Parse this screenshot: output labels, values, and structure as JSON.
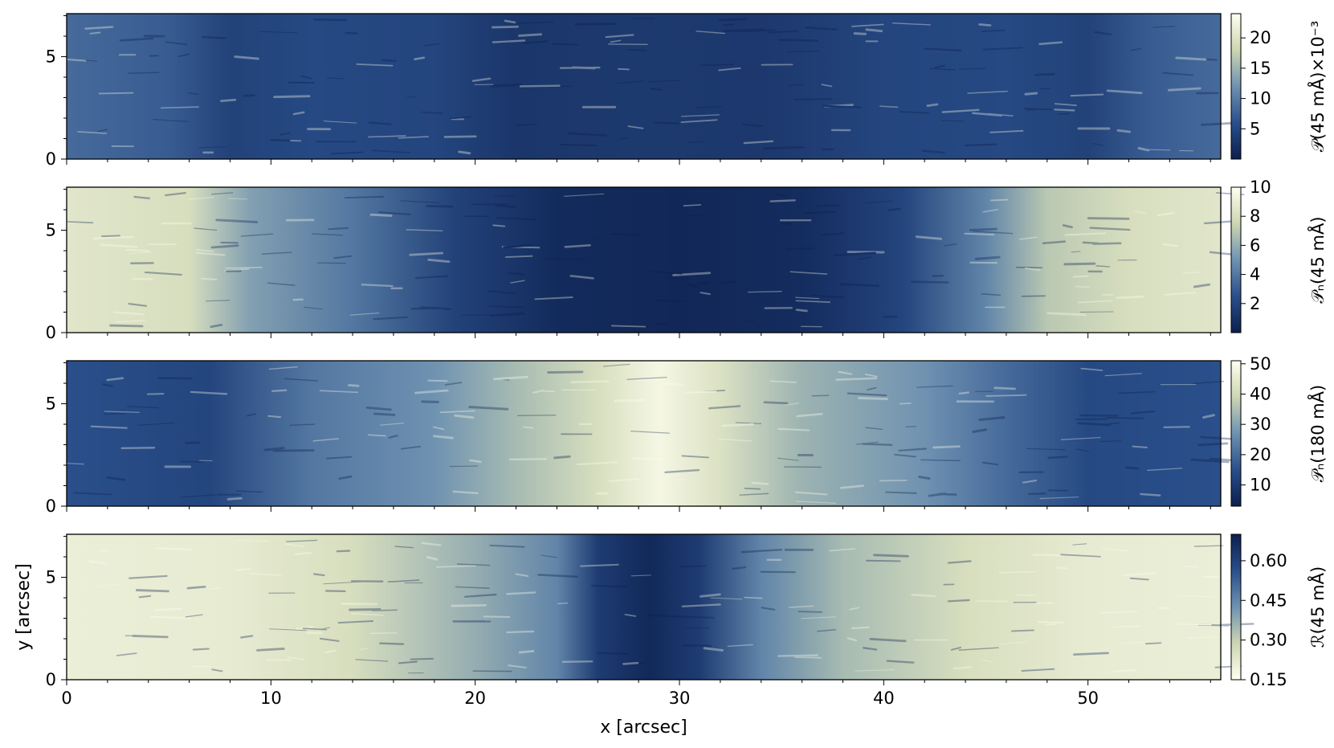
{
  "chart_data": {
    "type": "heatmap",
    "shared": {
      "xlabel": "x [arcsec]",
      "ylabel": "y [arcsec]",
      "xlim": [
        0,
        56.5
      ],
      "ylim": [
        0,
        7.1
      ],
      "x_ticks": [
        0,
        10,
        20,
        30,
        40,
        50
      ],
      "x_tick_labels": [
        "0",
        "10",
        "20",
        "30",
        "40",
        "50"
      ],
      "y_ticks": [
        0,
        5
      ],
      "y_tick_labels": [
        "0",
        "5"
      ]
    },
    "panels": [
      {
        "colorbar_label": "𝒫(45 mÅ)×10⁻³",
        "colormap": [
          "#0c1f4d",
          "#2a4f8a",
          "#6f92b1",
          "#cdd6b2",
          "#fffff0"
        ],
        "clim": [
          0,
          24
        ],
        "colorbar_ticks": [
          5,
          10,
          15,
          20
        ],
        "colorbar_tick_labels": [
          "5",
          "10",
          "15",
          "20"
        ],
        "pattern": "bright granular edges at both ends; dark centre with faint bright filaments",
        "profile": [
          [
            0,
            0.35
          ],
          [
            5,
            0.3
          ],
          [
            8,
            0.18
          ],
          [
            12,
            0.22
          ],
          [
            18,
            0.2
          ],
          [
            22,
            0.12
          ],
          [
            28,
            0.14
          ],
          [
            34,
            0.13
          ],
          [
            40,
            0.2
          ],
          [
            46,
            0.22
          ],
          [
            50,
            0.18
          ],
          [
            53,
            0.3
          ],
          [
            56.5,
            0.35
          ]
        ]
      },
      {
        "colorbar_label": "𝒫ₙ(45 mÅ)",
        "colormap": [
          "#0c1f4d",
          "#2a4f8a",
          "#6f92b1",
          "#cdd6b2",
          "#fffff0"
        ],
        "clim": [
          0,
          10
        ],
        "colorbar_ticks": [
          2,
          4,
          6,
          8,
          10
        ],
        "colorbar_tick_labels": [
          "2",
          "4",
          "6",
          "8",
          "10"
        ],
        "pattern": "high values in outer quiet-Sun regions, filamentary penumbra, very low in umbra",
        "profile": [
          [
            0,
            0.85
          ],
          [
            6,
            0.8
          ],
          [
            9,
            0.55
          ],
          [
            14,
            0.4
          ],
          [
            19,
            0.18
          ],
          [
            24,
            0.06
          ],
          [
            30,
            0.04
          ],
          [
            36,
            0.07
          ],
          [
            41,
            0.2
          ],
          [
            45,
            0.45
          ],
          [
            48,
            0.7
          ],
          [
            52,
            0.8
          ],
          [
            56.5,
            0.85
          ]
        ]
      },
      {
        "colorbar_label": "𝒫ₙ(180 mÅ)",
        "colormap": [
          "#0c1f4d",
          "#2a4f8a",
          "#6f92b1",
          "#cdd6b2",
          "#fffff0"
        ],
        "clim": [
          3,
          51
        ],
        "colorbar_ticks": [
          10,
          20,
          30,
          40,
          50
        ],
        "colorbar_tick_labels": [
          "10",
          "20",
          "30",
          "40",
          "50"
        ],
        "pattern": "bright umbral core near x≈29, moderate penumbra, dark granulation at ends",
        "profile": [
          [
            0,
            0.25
          ],
          [
            7,
            0.2
          ],
          [
            12,
            0.4
          ],
          [
            18,
            0.5
          ],
          [
            22,
            0.65
          ],
          [
            26,
            0.8
          ],
          [
            29,
            0.95
          ],
          [
            32,
            0.82
          ],
          [
            36,
            0.62
          ],
          [
            42,
            0.5
          ],
          [
            46,
            0.35
          ],
          [
            50,
            0.22
          ],
          [
            56.5,
            0.25
          ]
        ]
      },
      {
        "colorbar_label": "ℛ(45 mÅ)",
        "colormap": [
          "#fffff0",
          "#cdd6b2",
          "#6f92b1",
          "#2a4f8a",
          "#0c1f4d"
        ],
        "clim": [
          0.15,
          0.7
        ],
        "colorbar_ticks": [
          0.15,
          0.3,
          0.45,
          0.6
        ],
        "colorbar_tick_labels": [
          "0.15",
          "0.30",
          "0.45",
          "0.60"
        ],
        "pattern": "pale quiet Sun at ends, dark umbra centred near x≈28.5",
        "profile": [
          [
            0,
            0.1
          ],
          [
            8,
            0.12
          ],
          [
            14,
            0.2
          ],
          [
            20,
            0.4
          ],
          [
            24,
            0.55
          ],
          [
            26,
            0.85
          ],
          [
            28.5,
            0.95
          ],
          [
            31,
            0.85
          ],
          [
            34,
            0.55
          ],
          [
            38,
            0.35
          ],
          [
            44,
            0.2
          ],
          [
            50,
            0.12
          ],
          [
            56.5,
            0.1
          ]
        ]
      }
    ]
  }
}
